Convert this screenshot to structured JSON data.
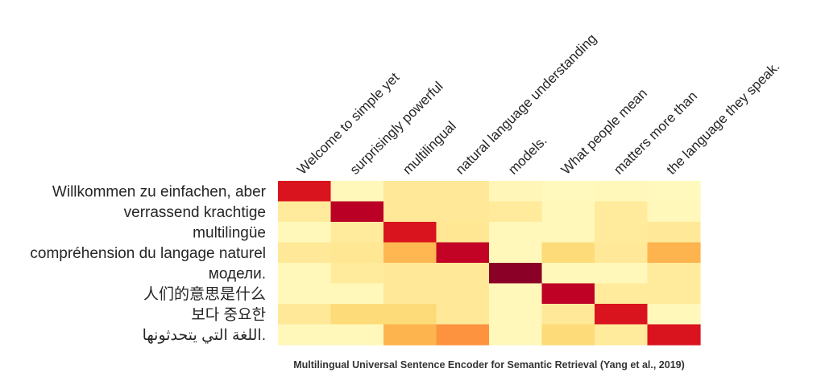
{
  "chart_data": {
    "type": "heatmap",
    "caption": "Multilingual Universal Sentence Encoder for Semantic Retrieval (Yang et al., 2019)",
    "columns": [
      "Welcome to simple yet",
      "surprisingly powerful",
      "multilingual",
      "natural language understanding",
      "models.",
      "What people mean",
      "matters more than",
      "the language they speak."
    ],
    "rows": [
      "Willkommen zu einfachen, aber",
      "verrassend krachtige",
      "multilingüe",
      "compréhension du langage naturel",
      "модели.",
      "人们的意思是什么",
      "보다 중요한",
      "اللغة التي يتحدثونها."
    ],
    "values": [
      [
        0.78,
        0.05,
        0.15,
        0.15,
        0.06,
        0.04,
        0.05,
        0.04
      ],
      [
        0.14,
        0.88,
        0.15,
        0.15,
        0.14,
        0.05,
        0.14,
        0.05
      ],
      [
        0.05,
        0.14,
        0.78,
        0.16,
        0.05,
        0.05,
        0.14,
        0.15
      ],
      [
        0.15,
        0.16,
        0.36,
        0.86,
        0.05,
        0.24,
        0.15,
        0.37
      ],
      [
        0.05,
        0.14,
        0.15,
        0.15,
        0.98,
        0.05,
        0.05,
        0.14
      ],
      [
        0.05,
        0.05,
        0.15,
        0.15,
        0.05,
        0.87,
        0.14,
        0.14
      ],
      [
        0.15,
        0.24,
        0.24,
        0.15,
        0.05,
        0.15,
        0.78,
        0.05
      ],
      [
        0.05,
        0.05,
        0.37,
        0.48,
        0.05,
        0.24,
        0.14,
        0.78
      ]
    ],
    "value_range": [
      0,
      1
    ],
    "colormap": [
      "#ffffcc",
      "#ffeda0",
      "#fed976",
      "#feb24c",
      "#fd8d3c",
      "#fc4e2a",
      "#e31a1c",
      "#bd0026",
      "#800026"
    ],
    "label_color": "#262626"
  }
}
